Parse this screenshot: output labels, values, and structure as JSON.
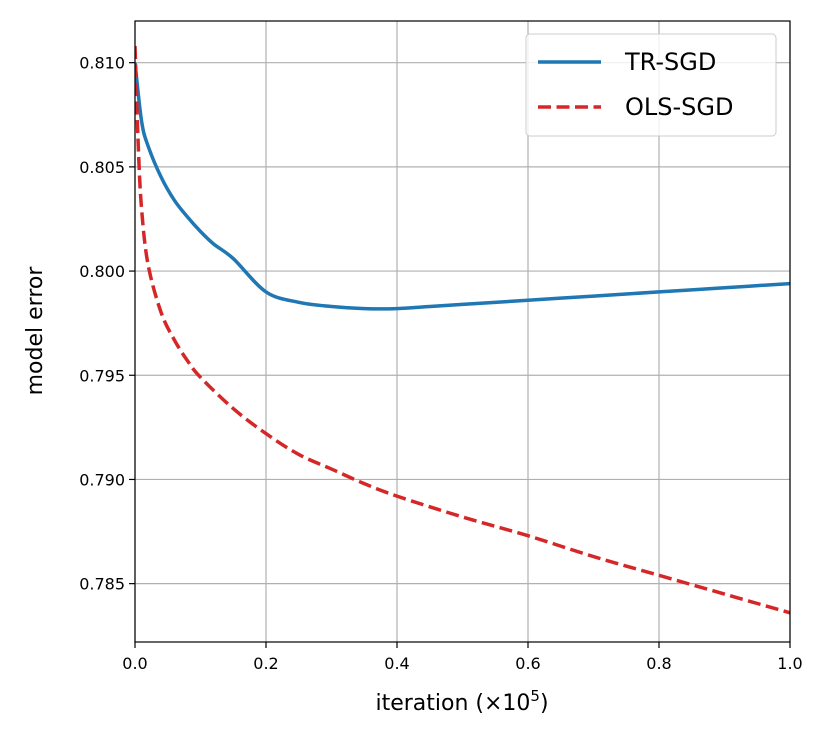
{
  "chart_data": {
    "type": "line",
    "title": "",
    "xlabel": "iteration (×10⁵)",
    "xlabel_main": "iteration (×10",
    "xlabel_exp": "5",
    "xlabel_close": ")",
    "ylabel": "model error",
    "xlim": [
      0.0,
      1.0
    ],
    "ylim": [
      0.7822,
      0.812
    ],
    "xticks": [
      0.0,
      0.2,
      0.4,
      0.6,
      0.8,
      1.0
    ],
    "xtick_labels": [
      "0.0",
      "0.2",
      "0.4",
      "0.6",
      "0.8",
      "1.0"
    ],
    "yticks": [
      0.785,
      0.79,
      0.795,
      0.8,
      0.805,
      0.81
    ],
    "ytick_labels": [
      "0.785",
      "0.790",
      "0.795",
      "0.800",
      "0.805",
      "0.810"
    ],
    "grid": true,
    "legend_position": "top-right",
    "series": [
      {
        "name": "TR-SGD",
        "color": "#1f77b4",
        "style": "solid",
        "x": [
          0.0,
          0.01,
          0.02,
          0.04,
          0.06,
          0.08,
          0.1,
          0.12,
          0.15,
          0.2,
          0.25,
          0.3,
          0.35,
          0.4,
          0.45,
          0.5,
          0.6,
          0.7,
          0.8,
          0.9,
          1.0
        ],
        "y": [
          0.81,
          0.8072,
          0.806,
          0.8045,
          0.8034,
          0.8026,
          0.8019,
          0.8013,
          0.8006,
          0.799,
          0.7985,
          0.7983,
          0.7982,
          0.7982,
          0.7983,
          0.7984,
          0.7986,
          0.7988,
          0.799,
          0.7992,
          0.7994
        ]
      },
      {
        "name": "OLS-SGD",
        "color": "#d62728",
        "style": "dashed",
        "x": [
          0.0,
          0.005,
          0.01,
          0.02,
          0.04,
          0.06,
          0.08,
          0.1,
          0.15,
          0.2,
          0.25,
          0.3,
          0.35,
          0.4,
          0.5,
          0.6,
          0.7,
          0.8,
          0.9,
          1.0
        ],
        "y": [
          0.8108,
          0.806,
          0.803,
          0.8003,
          0.798,
          0.7967,
          0.7957,
          0.7949,
          0.7934,
          0.7922,
          0.7912,
          0.7905,
          0.7898,
          0.7892,
          0.7882,
          0.7873,
          0.7863,
          0.7854,
          0.7845,
          0.7836
        ]
      }
    ]
  }
}
